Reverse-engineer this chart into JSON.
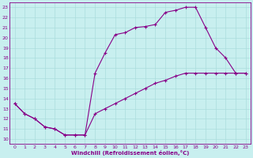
{
  "xlabel": "Windchill (Refroidissement éolien,°C)",
  "xlim": [
    -0.5,
    23.5
  ],
  "ylim": [
    9.5,
    23.5
  ],
  "xticks": [
    0,
    1,
    2,
    3,
    4,
    5,
    6,
    7,
    8,
    9,
    10,
    11,
    12,
    13,
    14,
    15,
    16,
    17,
    18,
    19,
    20,
    21,
    22,
    23
  ],
  "yticks": [
    10,
    11,
    12,
    13,
    14,
    15,
    16,
    17,
    18,
    19,
    20,
    21,
    22,
    23
  ],
  "background_color": "#c8efef",
  "line_color": "#880088",
  "grid_color": "#aadddd",
  "line1_x": [
    0,
    1,
    2,
    3,
    4,
    5,
    6,
    7,
    8,
    9,
    10,
    11,
    12,
    13,
    14,
    15,
    16,
    17,
    18,
    19,
    20,
    21,
    22,
    23
  ],
  "line1_y": [
    13.5,
    12.5,
    12.0,
    11.2,
    11.0,
    10.4,
    10.4,
    10.4,
    16.5,
    18.5,
    20.3,
    20.5,
    21.0,
    21.1,
    21.3,
    22.5,
    22.7,
    23.0,
    23.0,
    21.0,
    19.0,
    18.0,
    16.5,
    16.5
  ],
  "line2_x": [
    0,
    1,
    2,
    3,
    4,
    5,
    6,
    7,
    8,
    9,
    10,
    11,
    12,
    13,
    14,
    15,
    16,
    17,
    18,
    19,
    20,
    21,
    22,
    23
  ],
  "line2_y": [
    13.5,
    12.5,
    12.0,
    11.2,
    11.0,
    10.4,
    10.4,
    10.4,
    12.5,
    13.0,
    13.5,
    14.0,
    14.5,
    15.0,
    15.5,
    15.8,
    16.2,
    16.5,
    16.5,
    16.5,
    16.5,
    16.5,
    16.5,
    16.5
  ]
}
